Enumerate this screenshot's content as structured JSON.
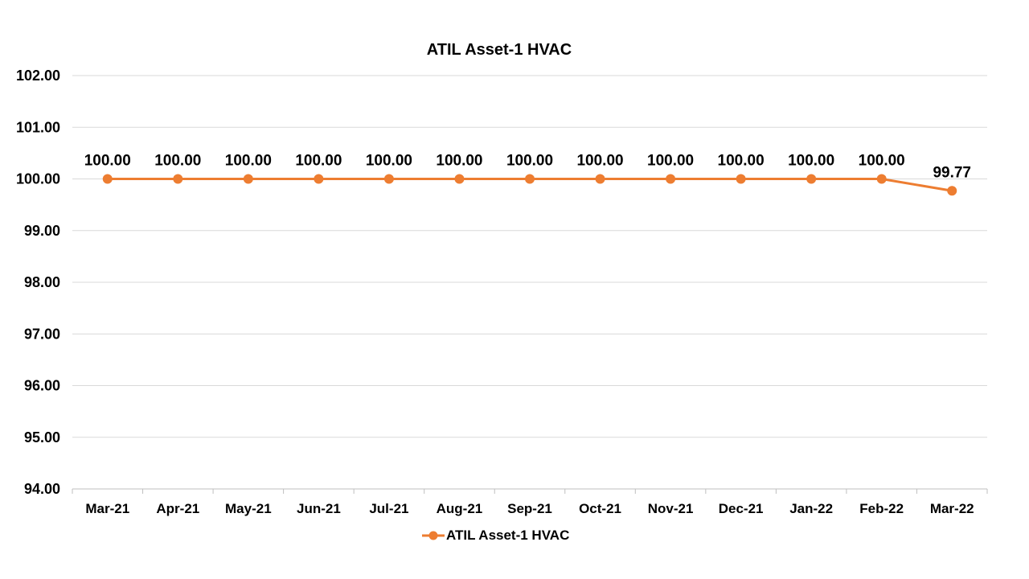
{
  "chart_data": {
    "type": "line",
    "title": "ATIL Asset-1 HVAC",
    "categories": [
      "Mar-21",
      "Apr-21",
      "May-21",
      "Jun-21",
      "Jul-21",
      "Aug-21",
      "Sep-21",
      "Oct-21",
      "Nov-21",
      "Dec-21",
      "Jan-22",
      "Feb-22",
      "Mar-22"
    ],
    "series": [
      {
        "name": "ATIL Asset-1 HVAC",
        "color": "#ED7D31",
        "values": [
          100.0,
          100.0,
          100.0,
          100.0,
          100.0,
          100.0,
          100.0,
          100.0,
          100.0,
          100.0,
          100.0,
          100.0,
          99.77
        ],
        "labels": [
          "100.00",
          "100.00",
          "100.00",
          "100.00",
          "100.00",
          "100.00",
          "100.00",
          "100.00",
          "100.00",
          "100.00",
          "100.00",
          "100.00",
          "99.77"
        ]
      }
    ],
    "ylim": [
      94,
      102
    ],
    "yticks": [
      "94.00",
      "95.00",
      "96.00",
      "97.00",
      "98.00",
      "99.00",
      "100.00",
      "101.00",
      "102.00"
    ],
    "xlabel": "",
    "ylabel": "",
    "grid": true,
    "legend_position": "bottom"
  }
}
